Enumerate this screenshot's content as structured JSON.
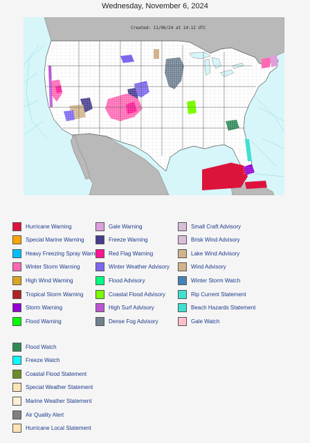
{
  "header": {
    "date": "Wednesday, November 6, 2024"
  },
  "map": {
    "created_text": "Created: 11/06/24 at 14:12 UTC",
    "colors": {
      "ocean": "#d6f6f9",
      "land": "#ffffff",
      "foreign_land": "#b9b9b9",
      "border": "#8a8a8a"
    }
  },
  "legend": {
    "col1": [
      {
        "label": "Hurricane Warning",
        "color": "#dc143c"
      },
      {
        "label": "Special Marine Warning",
        "color": "#ffa500"
      },
      {
        "label": "Heavy Freezing Spray Warning",
        "color": "#00bfff"
      },
      {
        "label": "Winter Storm Warning",
        "color": "#ff69b4"
      },
      {
        "label": "High Wind Warning",
        "color": "#daa520"
      },
      {
        "label": "Tropical Storm Warning",
        "color": "#b22222"
      },
      {
        "label": "Storm Warning",
        "color": "#9400d3"
      },
      {
        "label": "Flood Warning",
        "color": "#00ff00"
      }
    ],
    "col2": [
      {
        "label": "Gale Warning",
        "color": "#dda0dd"
      },
      {
        "label": "Freeze Warning",
        "color": "#483d8b"
      },
      {
        "label": "Red Flag Warning",
        "color": "#ff1493"
      },
      {
        "label": "Winter Weather Advisory",
        "color": "#7b68ee"
      },
      {
        "label": "Flood Advisory",
        "color": "#00ff7f"
      },
      {
        "label": "Coastal Flood Advisory",
        "color": "#7cfc00"
      },
      {
        "label": "High Surf Advisory",
        "color": "#ba55d3"
      },
      {
        "label": "Dense Fog Advisory",
        "color": "#708090"
      }
    ],
    "col3": [
      {
        "label": "Small Craft Advisory",
        "color": "#d8bfd8"
      },
      {
        "label": "Brisk Wind Advisory",
        "color": "#d8bfd8"
      },
      {
        "label": "Lake Wind Advisory",
        "color": "#d2b48c"
      },
      {
        "label": "Wind Advisory",
        "color": "#d2b48c"
      },
      {
        "label": "Winter Storm Watch",
        "color": "#4682b4"
      },
      {
        "label": "Rip Current Statement",
        "color": "#40e0d0"
      },
      {
        "label": "Beach Hazards Statement",
        "color": "#40e0d0"
      },
      {
        "label": "Gale Watch",
        "color": "#ffc0cb"
      }
    ],
    "col4": [
      {
        "label": "Flood Watch",
        "color": "#2e8b57"
      },
      {
        "label": "Freeze Watch",
        "color": "#00ffff"
      },
      {
        "label": "Coastal Flood Statement",
        "color": "#6b8e23"
      },
      {
        "label": "Special Weather Statement",
        "color": "#ffe4b5"
      },
      {
        "label": "Marine Weather Statement",
        "color": "#ffefd5"
      },
      {
        "label": "Air Quality Alert",
        "color": "#808080"
      },
      {
        "label": "Hurricane Local Statement",
        "color": "#ffe4b5"
      }
    ]
  }
}
